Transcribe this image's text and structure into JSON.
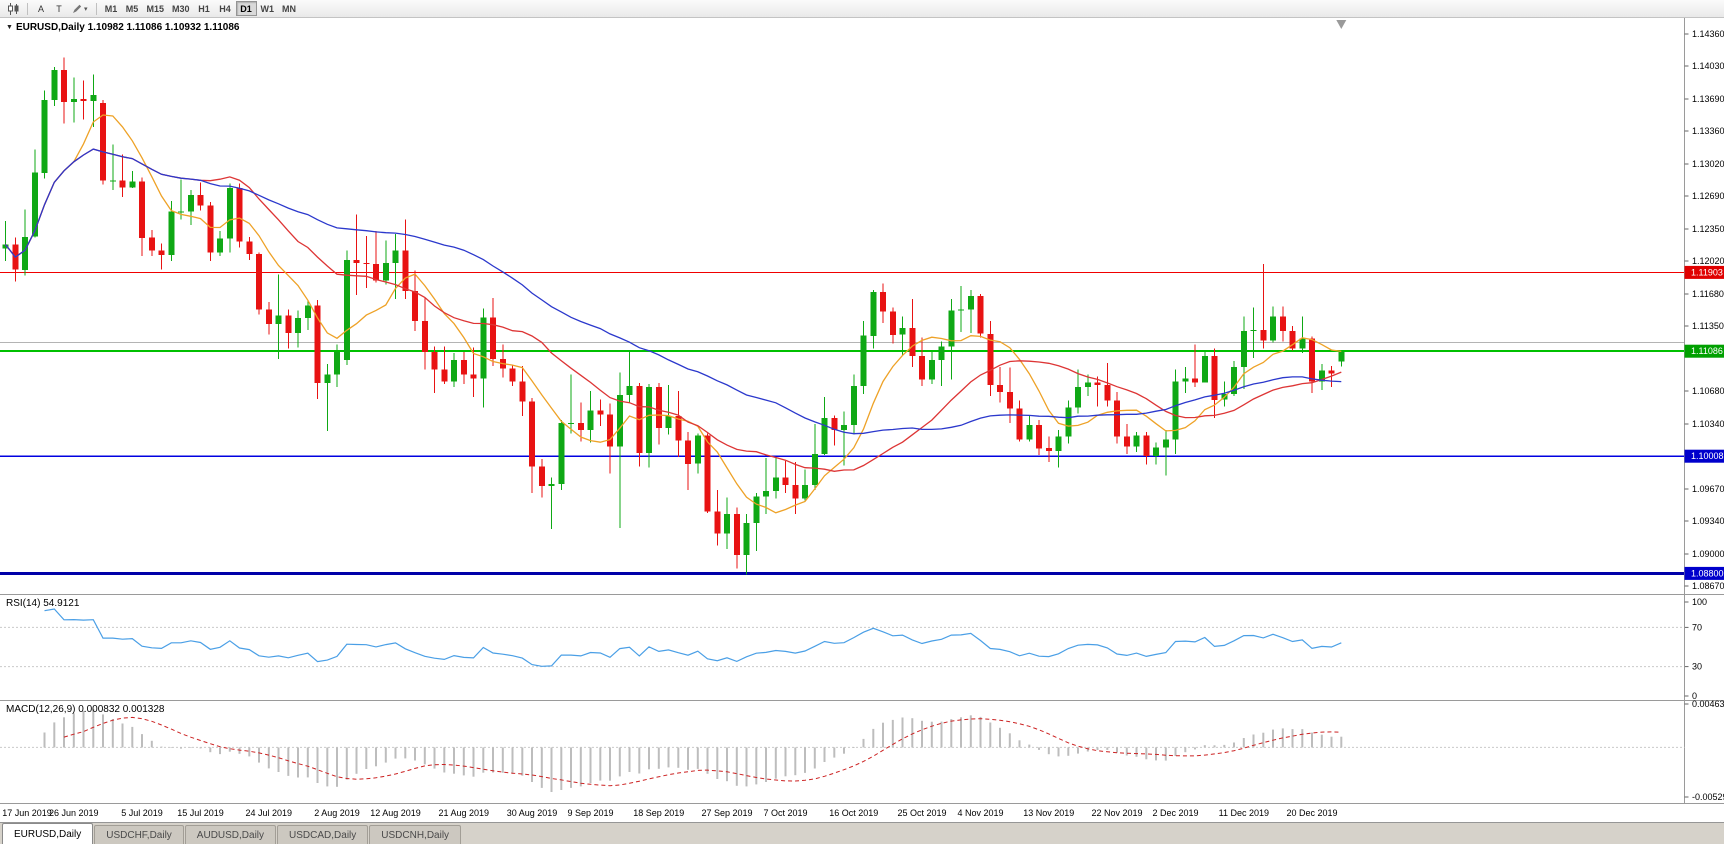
{
  "toolbar": {
    "tools": {
      "annotation_a": "A",
      "annotation_t": "T"
    },
    "timeframes": [
      {
        "label": "M1",
        "active": false
      },
      {
        "label": "M5",
        "active": false
      },
      {
        "label": "M15",
        "active": false
      },
      {
        "label": "M30",
        "active": false
      },
      {
        "label": "H1",
        "active": false
      },
      {
        "label": "H4",
        "active": false
      },
      {
        "label": "D1",
        "active": true
      },
      {
        "label": "W1",
        "active": false
      },
      {
        "label": "MN",
        "active": false
      }
    ]
  },
  "chart": {
    "title": "EURUSD,Daily 1.10982 1.11086 1.10932 1.11086",
    "rsi_label": "RSI(14) 54.9121",
    "macd_label": "MACD(12,26,9) 0.000832 0.001328"
  },
  "chart_data": {
    "type": "candlestick",
    "symbol": "EURUSD",
    "period": "Daily",
    "current_ohlc": {
      "open": "1.10982",
      "high": "1.11086",
      "low": "1.10932",
      "close": "1.11086"
    },
    "price_axis_labels": [
      "1.14360",
      "1.14030",
      "1.13690",
      "1.13360",
      "1.13020",
      "1.12690",
      "1.12350",
      "1.12020",
      "1.11680",
      "1.11350",
      "1.10680",
      "1.10340",
      "1.09670",
      "1.09340",
      "1.09000",
      "1.08670"
    ],
    "hlines": [
      {
        "price": 1.11903,
        "color": "#f00000",
        "width": 1
      },
      {
        "price": 1.1118,
        "color": "#b4b4b4",
        "width": 1
      },
      {
        "price": 1.1109,
        "color": "#00c000",
        "width": 2
      },
      {
        "price": 1.10008,
        "color": "#0000e0",
        "width": 1.4
      },
      {
        "price": 1.088,
        "color": "#0000a8",
        "width": 3
      }
    ],
    "badges": [
      {
        "label": "1.11903",
        "price": 1.11903,
        "color": "#e00000"
      },
      {
        "label": "1.11086",
        "price": 1.1109,
        "color": "#00a000"
      },
      {
        "label": "1.10008",
        "price": 1.10008,
        "color": "#0000cc"
      },
      {
        "label": "1.08800",
        "price": 1.088,
        "color": "#0000cc"
      }
    ],
    "moving_averages": [
      {
        "period": 8,
        "color": "#eea227"
      },
      {
        "period": 21,
        "color": "#dd3535"
      },
      {
        "period": 45,
        "color": "#2b38cc"
      }
    ],
    "rsi": {
      "period": 14,
      "value": "54.9121",
      "levels": [
        "100",
        "70",
        "30",
        "0"
      ],
      "color": "#4a9fe6"
    },
    "macd": {
      "params": "12,26,9",
      "value_main": "0.000832",
      "value_signal": "0.001328",
      "axis_max": "0.00463",
      "axis_min": "-0.00529",
      "hist_color": "#bdbdbd",
      "signal_color": "#cc2222"
    },
    "colors": {
      "up": "#0fa815",
      "down": "#e81313",
      "bg": "#ffffff"
    },
    "x_labels": [
      [
        "17 Jun 2019",
        0
      ],
      [
        "26 Jun 2019",
        7
      ],
      [
        "5 Jul 2019",
        14
      ],
      [
        "15 Jul 2019",
        20
      ],
      [
        "24 Jul 2019",
        27
      ],
      [
        "2 Aug 2019",
        34
      ],
      [
        "12 Aug 2019",
        40
      ],
      [
        "21 Aug 2019",
        47
      ],
      [
        "30 Aug 2019",
        54
      ],
      [
        "9 Sep 2019",
        60
      ],
      [
        "18 Sep 2019",
        67
      ],
      [
        "27 Sep 2019",
        74
      ],
      [
        "7 Oct 2019",
        80
      ],
      [
        "16 Oct 2019",
        87
      ],
      [
        "25 Oct 2019",
        94
      ],
      [
        "4 Nov 2019",
        100
      ],
      [
        "13 Nov 2019",
        107
      ],
      [
        "22 Nov 2019",
        114
      ],
      [
        "2 Dec 2019",
        120
      ],
      [
        "11 Dec 2019",
        127
      ],
      [
        "20 Dec 2019",
        134
      ]
    ],
    "ohlc": [
      [
        1.1215,
        1.1243,
        1.1202,
        1.1219
      ],
      [
        1.1219,
        1.1226,
        1.1181,
        1.1193
      ],
      [
        1.1193,
        1.1255,
        1.1187,
        1.1227
      ],
      [
        1.1227,
        1.1317,
        1.1226,
        1.1293
      ],
      [
        1.1293,
        1.1378,
        1.1287,
        1.1368
      ],
      [
        1.1368,
        1.1402,
        1.1362,
        1.1399
      ],
      [
        1.1399,
        1.1412,
        1.1344,
        1.1366
      ],
      [
        1.1366,
        1.1391,
        1.1345,
        1.1369
      ],
      [
        1.1369,
        1.1388,
        1.1348,
        1.1367
      ],
      [
        1.1367,
        1.1394,
        1.134,
        1.1373
      ],
      [
        1.1365,
        1.1368,
        1.1281,
        1.1285
      ],
      [
        1.1285,
        1.1322,
        1.1275,
        1.1285
      ],
      [
        1.1285,
        1.1312,
        1.1268,
        1.1278
      ],
      [
        1.1278,
        1.1295,
        1.1277,
        1.1284
      ],
      [
        1.1284,
        1.1288,
        1.1207,
        1.1226
      ],
      [
        1.1226,
        1.1234,
        1.1207,
        1.1213
      ],
      [
        1.1213,
        1.122,
        1.1193,
        1.1208
      ],
      [
        1.1208,
        1.1264,
        1.1202,
        1.1253
      ],
      [
        1.1253,
        1.1286,
        1.1245,
        1.1253
      ],
      [
        1.1253,
        1.1275,
        1.1239,
        1.127
      ],
      [
        1.127,
        1.1283,
        1.1254,
        1.1259
      ],
      [
        1.1259,
        1.1263,
        1.1202,
        1.1211
      ],
      [
        1.1211,
        1.1233,
        1.1207,
        1.1225
      ],
      [
        1.1225,
        1.1282,
        1.1211,
        1.1277
      ],
      [
        1.1277,
        1.1282,
        1.1216,
        1.1222
      ],
      [
        1.1222,
        1.1227,
        1.1203,
        1.1209
      ],
      [
        1.1209,
        1.1211,
        1.1147,
        1.1152
      ],
      [
        1.1152,
        1.116,
        1.1126,
        1.1137
      ],
      [
        1.1137,
        1.1188,
        1.1101,
        1.1146
      ],
      [
        1.1146,
        1.1152,
        1.1112,
        1.1128
      ],
      [
        1.1128,
        1.1151,
        1.1113,
        1.1143
      ],
      [
        1.1143,
        1.1162,
        1.1131,
        1.1156
      ],
      [
        1.1156,
        1.1162,
        1.106,
        1.1076
      ],
      [
        1.1076,
        1.1096,
        1.1027,
        1.1085
      ],
      [
        1.1085,
        1.1116,
        1.1072,
        1.1108
      ],
      [
        1.11,
        1.1213,
        1.1095,
        1.1203
      ],
      [
        1.1203,
        1.125,
        1.1167,
        1.12
      ],
      [
        1.12,
        1.1228,
        1.1174,
        1.1199
      ],
      [
        1.1199,
        1.1233,
        1.118,
        1.1182
      ],
      [
        1.1182,
        1.1223,
        1.1178,
        1.12
      ],
      [
        1.12,
        1.123,
        1.1163,
        1.1213
      ],
      [
        1.1213,
        1.1245,
        1.1163,
        1.1171
      ],
      [
        1.1171,
        1.1192,
        1.113,
        1.114
      ],
      [
        1.114,
        1.1164,
        1.109,
        1.1108
      ],
      [
        1.1108,
        1.1114,
        1.1066,
        1.109
      ],
      [
        1.109,
        1.1114,
        1.1075,
        1.1078
      ],
      [
        1.1078,
        1.1107,
        1.1072,
        1.11
      ],
      [
        1.11,
        1.1108,
        1.1075,
        1.1085
      ],
      [
        1.1085,
        1.1113,
        1.1062,
        1.1081
      ],
      [
        1.1081,
        1.1153,
        1.1051,
        1.1144
      ],
      [
        1.1144,
        1.1164,
        1.1094,
        1.1101
      ],
      [
        1.1101,
        1.1116,
        1.1082,
        1.1091
      ],
      [
        1.1091,
        1.1095,
        1.1073,
        1.1078
      ],
      [
        1.1078,
        1.1094,
        1.1042,
        1.1057
      ],
      [
        1.1057,
        1.1061,
        1.0963,
        1.099
      ],
      [
        1.099,
        1.0998,
        1.0958,
        1.097
      ],
      [
        1.097,
        1.0979,
        1.0926,
        1.0972
      ],
      [
        1.0972,
        1.1038,
        1.0966,
        1.1035
      ],
      [
        1.1035,
        1.1085,
        1.1024,
        1.1035
      ],
      [
        1.1035,
        1.1056,
        1.1016,
        1.1028
      ],
      [
        1.1028,
        1.1068,
        1.1015,
        1.1048
      ],
      [
        1.1048,
        1.1059,
        1.1032,
        1.1044
      ],
      [
        1.1044,
        1.1055,
        1.0983,
        1.1011
      ],
      [
        1.1011,
        1.1087,
        1.0927,
        1.1064
      ],
      [
        1.1064,
        1.111,
        1.1056,
        1.1073
      ],
      [
        1.1073,
        1.1076,
        1.099,
        1.1004
      ],
      [
        1.1004,
        1.1075,
        1.0989,
        1.1072
      ],
      [
        1.1072,
        1.1076,
        1.1013,
        1.103
      ],
      [
        1.103,
        1.1074,
        1.1023,
        1.1042
      ],
      [
        1.1042,
        1.1068,
        1.1,
        1.1017
      ],
      [
        1.1017,
        1.1026,
        1.0966,
        1.0993
      ],
      [
        1.0993,
        1.1024,
        1.0983,
        1.1022
      ],
      [
        1.1022,
        1.1024,
        1.0942,
        1.0944
      ],
      [
        1.0944,
        1.0966,
        1.0909,
        1.0921
      ],
      [
        1.0921,
        1.0958,
        1.0905,
        1.0941
      ],
      [
        1.0941,
        1.0948,
        1.0885,
        1.0899
      ],
      [
        1.0899,
        1.0941,
        1.0879,
        1.0932
      ],
      [
        1.0932,
        1.0963,
        1.0903,
        1.0959
      ],
      [
        1.0959,
        1.0999,
        1.0941,
        1.0965
      ],
      [
        1.0965,
        1.0999,
        1.0957,
        1.0979
      ],
      [
        1.0979,
        1.0996,
        1.0963,
        1.0971
      ],
      [
        1.0971,
        1.0995,
        1.0941,
        1.0957
      ],
      [
        1.0957,
        1.0987,
        1.0955,
        1.0971
      ],
      [
        1.0971,
        1.1034,
        1.0966,
        1.1003
      ],
      [
        1.1003,
        1.1062,
        1.1002,
        1.104
      ],
      [
        1.104,
        1.1043,
        1.1012,
        1.1028
      ],
      [
        1.1028,
        1.1047,
        1.0991,
        1.1033
      ],
      [
        1.1033,
        1.1085,
        1.1023,
        1.1073
      ],
      [
        1.1073,
        1.114,
        1.1065,
        1.1125
      ],
      [
        1.1125,
        1.1172,
        1.1112,
        1.117
      ],
      [
        1.117,
        1.1179,
        1.1138,
        1.115
      ],
      [
        1.115,
        1.1154,
        1.1117,
        1.1126
      ],
      [
        1.1126,
        1.1145,
        1.1105,
        1.1133
      ],
      [
        1.1133,
        1.1163,
        1.1093,
        1.1104
      ],
      [
        1.1104,
        1.1123,
        1.1073,
        1.108
      ],
      [
        1.108,
        1.1108,
        1.1075,
        1.11
      ],
      [
        1.11,
        1.1119,
        1.1073,
        1.1114
      ],
      [
        1.1114,
        1.1163,
        1.108,
        1.1151
      ],
      [
        1.1151,
        1.1176,
        1.1129,
        1.1152
      ],
      [
        1.1152,
        1.1172,
        1.1128,
        1.1166
      ],
      [
        1.1166,
        1.1168,
        1.1123,
        1.1127
      ],
      [
        1.1127,
        1.114,
        1.1063,
        1.1074
      ],
      [
        1.1074,
        1.1093,
        1.1056,
        1.1067
      ],
      [
        1.1067,
        1.1092,
        1.1035,
        1.105
      ],
      [
        1.105,
        1.1058,
        1.1016,
        1.1018
      ],
      [
        1.1018,
        1.1043,
        1.1016,
        1.1033
      ],
      [
        1.1033,
        1.1038,
        1.1002,
        1.1009
      ],
      [
        1.1009,
        1.1021,
        1.0995,
        1.1006
      ],
      [
        1.1006,
        1.1028,
        1.0989,
        1.1021
      ],
      [
        1.1021,
        1.1058,
        1.1014,
        1.1051
      ],
      [
        1.1051,
        1.109,
        1.1045,
        1.1072
      ],
      [
        1.1072,
        1.1085,
        1.1063,
        1.1077
      ],
      [
        1.1077,
        1.1083,
        1.1052,
        1.1074
      ],
      [
        1.1074,
        1.1097,
        1.1052,
        1.1058
      ],
      [
        1.1058,
        1.1067,
        1.1014,
        1.1021
      ],
      [
        1.1021,
        1.1034,
        1.1003,
        1.1011
      ],
      [
        1.1011,
        1.1026,
        1.1005,
        1.1022
      ],
      [
        1.1022,
        1.1026,
        1.0992,
        1.1001
      ],
      [
        1.1001,
        1.1015,
        1.0992,
        1.101
      ],
      [
        1.101,
        1.1028,
        1.0981,
        1.1018
      ],
      [
        1.1018,
        1.109,
        1.1003,
        1.1078
      ],
      [
        1.1078,
        1.1093,
        1.1066,
        1.1081
      ],
      [
        1.1081,
        1.1116,
        1.1072,
        1.1077
      ],
      [
        1.1077,
        1.111,
        1.1077,
        1.1104
      ],
      [
        1.1104,
        1.1112,
        1.104,
        1.1059
      ],
      [
        1.1059,
        1.1078,
        1.1052,
        1.1065
      ],
      [
        1.1065,
        1.1099,
        1.1063,
        1.1093
      ],
      [
        1.1093,
        1.1145,
        1.107,
        1.113
      ],
      [
        1.113,
        1.1154,
        1.1102,
        1.1131
      ],
      [
        1.1131,
        1.1199,
        1.1112,
        1.112
      ],
      [
        1.112,
        1.1155,
        1.1118,
        1.1145
      ],
      [
        1.1145,
        1.1155,
        1.1119,
        1.113
      ],
      [
        1.113,
        1.1135,
        1.111,
        1.1112
      ],
      [
        1.1112,
        1.1145,
        1.1107,
        1.1122
      ],
      [
        1.1122,
        1.1124,
        1.1066,
        1.1078
      ],
      [
        1.1078,
        1.1096,
        1.1069,
        1.1089
      ],
      [
        1.1089,
        1.1094,
        1.1072,
        1.1086
      ],
      [
        1.10982,
        1.11086,
        1.10932,
        1.11086
      ]
    ]
  },
  "tabs": [
    {
      "label": "EURUSD,Daily",
      "active": true
    },
    {
      "label": "USDCHF,Daily",
      "active": false
    },
    {
      "label": "AUDUSD,Daily",
      "active": false
    },
    {
      "label": "USDCAD,Daily",
      "active": false
    },
    {
      "label": "USDCNH,Daily",
      "active": false
    }
  ]
}
